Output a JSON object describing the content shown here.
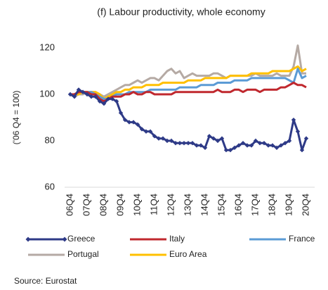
{
  "chart_data": {
    "type": "line",
    "title": "(f) Labour productivity, whole economy",
    "y_label": "('06 Q4 = 100)",
    "source": "Source: Eurostat",
    "categories": [
      "06Q4",
      null,
      null,
      null,
      "07Q4",
      null,
      null,
      null,
      "08Q4",
      null,
      null,
      null,
      "09Q4",
      null,
      null,
      null,
      "10Q4",
      null,
      null,
      null,
      "11Q4",
      null,
      null,
      null,
      "12Q4",
      null,
      null,
      null,
      "13Q4",
      null,
      null,
      null,
      "14Q4",
      null,
      null,
      null,
      "15Q4",
      null,
      null,
      null,
      "16Q4",
      null,
      null,
      null,
      "17Q4",
      null,
      null,
      null,
      "18Q4",
      null,
      null,
      null,
      "19Q4",
      null,
      null,
      null,
      "20Q4"
    ],
    "series": [
      {
        "name": "Greece",
        "color": "#2e3a87",
        "marker": "diamond",
        "values": [
          100,
          99,
          102,
          101,
          100,
          99,
          99,
          97,
          96,
          98,
          98,
          97,
          92,
          89,
          88,
          88,
          87,
          85,
          84,
          84,
          82,
          81,
          81,
          80,
          80,
          79,
          79,
          79,
          79,
          79,
          78,
          78,
          77,
          82,
          81,
          80,
          81,
          76,
          76,
          77,
          78,
          79,
          78,
          78,
          80,
          79,
          79,
          78,
          78,
          77,
          78,
          79,
          80,
          89,
          84,
          76,
          81
        ]
      },
      {
        "name": "Italy",
        "color": "#c0282e",
        "values": [
          100,
          100,
          101,
          101,
          101,
          100,
          100,
          98,
          97,
          98,
          99,
          99,
          99,
          100,
          100,
          101,
          100,
          100,
          101,
          101,
          100,
          100,
          100,
          100,
          100,
          101,
          101,
          101,
          101,
          101,
          101,
          101,
          101,
          101,
          101,
          102,
          101,
          101,
          101,
          102,
          102,
          101,
          102,
          102,
          102,
          101,
          102,
          102,
          102,
          102,
          103,
          103,
          104,
          105,
          104,
          104,
          103
        ]
      },
      {
        "name": "France",
        "color": "#5b9bd5",
        "values": [
          100,
          100,
          101,
          101,
          101,
          101,
          100,
          99,
          98,
          98,
          99,
          100,
          100,
          100,
          101,
          101,
          101,
          101,
          101,
          102,
          102,
          102,
          102,
          102,
          102,
          102,
          103,
          103,
          103,
          103,
          103,
          104,
          104,
          104,
          104,
          105,
          105,
          105,
          105,
          106,
          106,
          106,
          106,
          107,
          107,
          107,
          107,
          107,
          107,
          107,
          107,
          107,
          106,
          105,
          111,
          107,
          108
        ]
      },
      {
        "name": "Portugal",
        "color": "#b5aaa4",
        "values": [
          100,
          99,
          100,
          100,
          101,
          101,
          101,
          100,
          99,
          100,
          101,
          102,
          103,
          104,
          104,
          105,
          106,
          105,
          106,
          107,
          107,
          106,
          108,
          110,
          111,
          109,
          110,
          107,
          108,
          109,
          108,
          108,
          108,
          108,
          109,
          109,
          108,
          107,
          108,
          108,
          108,
          108,
          108,
          108,
          109,
          108,
          108,
          108,
          108,
          109,
          108,
          108,
          108,
          112,
          121,
          109,
          109
        ]
      },
      {
        "name": "Euro Area",
        "color": "#ffc000",
        "values": [
          100,
          100,
          100,
          101,
          101,
          101,
          101,
          100,
          98,
          99,
          100,
          101,
          101,
          102,
          102,
          103,
          103,
          103,
          104,
          104,
          104,
          104,
          105,
          105,
          105,
          105,
          105,
          105,
          106,
          106,
          106,
          106,
          107,
          107,
          107,
          107,
          107,
          107,
          108,
          108,
          108,
          108,
          108,
          109,
          109,
          109,
          109,
          109,
          110,
          110,
          110,
          110,
          110,
          111,
          112,
          110,
          111
        ]
      }
    ],
    "ylim": [
      60,
      120
    ],
    "yticks": [
      60,
      80,
      100,
      120
    ],
    "grid": false
  }
}
